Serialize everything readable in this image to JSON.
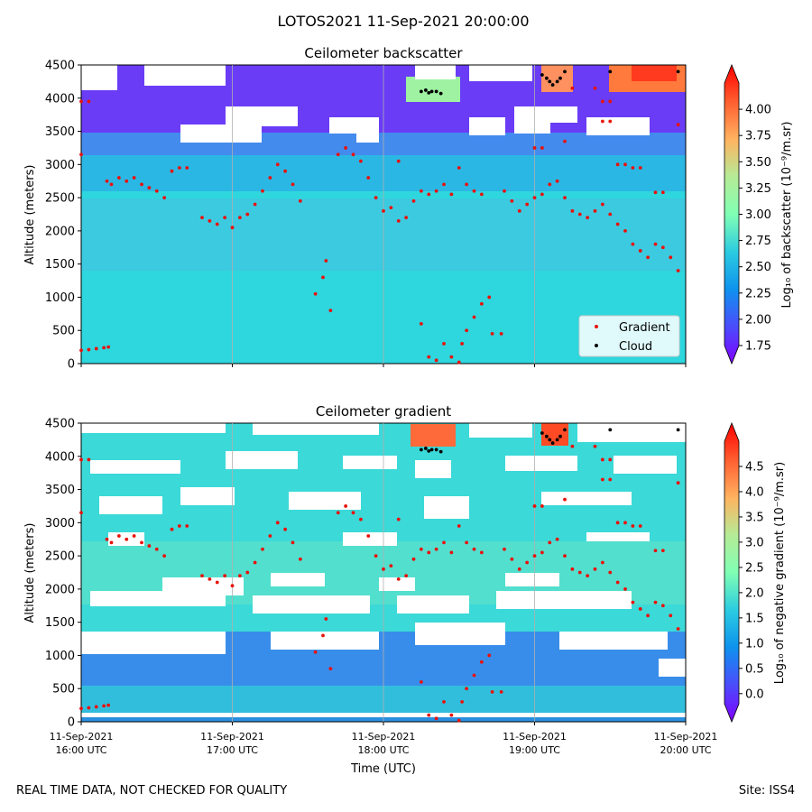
{
  "colors": {
    "gradient_marker": "#e8120a",
    "cloud_marker": "#000000",
    "background": "#ffffff"
  },
  "footer": {
    "left": "REAL TIME DATA, NOT CHECKED FOR QUALITY",
    "right": "Site: ISS4"
  },
  "chart_data": {
    "type": "heatmap",
    "title": "LOTOS2021 11-Sep-2021 20:00:00",
    "xlabel": "Time (UTC)",
    "x_ticks": [
      {
        "hour": 16,
        "line1": "11-Sep-2021",
        "line2": "16:00 UTC"
      },
      {
        "hour": 17,
        "line1": "11-Sep-2021",
        "line2": "17:00 UTC"
      },
      {
        "hour": 18,
        "line1": "11-Sep-2021",
        "line2": "18:00 UTC"
      },
      {
        "hour": 19,
        "line1": "11-Sep-2021",
        "line2": "19:00 UTC"
      },
      {
        "hour": 20,
        "line1": "11-Sep-2021",
        "line2": "20:00 UTC"
      }
    ],
    "xlim": [
      16,
      20
    ],
    "ylim": [
      0,
      4500
    ],
    "y_ticks": [
      0,
      500,
      1000,
      1500,
      2000,
      2500,
      3000,
      3500,
      4000,
      4500
    ],
    "legend": {
      "placement": "lower-right",
      "entries": [
        "Gradient",
        "Cloud"
      ]
    },
    "panels": [
      {
        "title": "Ceilometer backscatter",
        "ylabel": "Altitude (meters)",
        "colorbar_label": "Log₁₀ of backscatter (10⁻⁹/m.sr)",
        "colorbar_range": [
          1.75,
          4.25
        ],
        "colorbar_ticks": [
          "1.75",
          "2.00",
          "2.25",
          "2.50",
          "2.75",
          "3.00",
          "3.25",
          "3.50",
          "3.75",
          "4.00"
        ],
        "colorbar_values": [
          1.75,
          2.0,
          2.25,
          2.5,
          2.75,
          3.0,
          3.25,
          3.5,
          3.75,
          4.0
        ]
      },
      {
        "title": "Ceilometer gradient",
        "ylabel": "Altitude (meters)",
        "colorbar_label": "Log₁₀ of negative gradient (10⁻⁹/m.sr)",
        "colorbar_range": [
          -0.2,
          5.0
        ],
        "colorbar_ticks": [
          "0.0",
          "0.5",
          "1.0",
          "1.5",
          "2.0",
          "2.5",
          "3.0",
          "3.5",
          "4.0",
          "4.5"
        ],
        "colorbar_values": [
          0.0,
          0.5,
          1.0,
          1.5,
          2.0,
          2.5,
          3.0,
          3.5,
          4.0,
          4.5
        ]
      }
    ],
    "gradient_series": [
      [
        16.0,
        200
      ],
      [
        16.05,
        210
      ],
      [
        16.1,
        225
      ],
      [
        16.15,
        240
      ],
      [
        16.18,
        250
      ],
      [
        16.0,
        3950
      ],
      [
        16.05,
        3950
      ],
      [
        16.0,
        3150
      ],
      [
        16.17,
        2750
      ],
      [
        16.2,
        2700
      ],
      [
        16.25,
        2800
      ],
      [
        16.3,
        2750
      ],
      [
        16.35,
        2800
      ],
      [
        16.4,
        2700
      ],
      [
        16.45,
        2650
      ],
      [
        16.5,
        2600
      ],
      [
        16.55,
        2500
      ],
      [
        16.6,
        2900
      ],
      [
        16.65,
        2950
      ],
      [
        16.7,
        2950
      ],
      [
        16.8,
        2200
      ],
      [
        16.85,
        2150
      ],
      [
        16.9,
        2100
      ],
      [
        16.95,
        2200
      ],
      [
        17.0,
        2050
      ],
      [
        17.05,
        2200
      ],
      [
        17.1,
        2250
      ],
      [
        17.15,
        2400
      ],
      [
        17.2,
        2600
      ],
      [
        17.25,
        2800
      ],
      [
        17.3,
        3000
      ],
      [
        17.35,
        2900
      ],
      [
        17.4,
        2700
      ],
      [
        17.45,
        2450
      ],
      [
        17.55,
        1050
      ],
      [
        17.6,
        1300
      ],
      [
        17.62,
        1550
      ],
      [
        17.65,
        800
      ],
      [
        17.7,
        3150
      ],
      [
        17.75,
        3250
      ],
      [
        17.8,
        3150
      ],
      [
        17.85,
        3050
      ],
      [
        17.9,
        2800
      ],
      [
        17.95,
        2500
      ],
      [
        18.0,
        2300
      ],
      [
        18.05,
        2350
      ],
      [
        18.1,
        2150
      ],
      [
        18.15,
        2200
      ],
      [
        18.2,
        2450
      ],
      [
        18.25,
        2600
      ],
      [
        18.3,
        2550
      ],
      [
        18.35,
        2600
      ],
      [
        18.4,
        2700
      ],
      [
        18.45,
        2550
      ],
      [
        18.5,
        2950
      ],
      [
        18.55,
        2700
      ],
      [
        18.6,
        2600
      ],
      [
        18.65,
        2550
      ],
      [
        18.1,
        3050
      ],
      [
        18.25,
        600
      ],
      [
        18.3,
        100
      ],
      [
        18.35,
        50
      ],
      [
        18.4,
        300
      ],
      [
        18.45,
        100
      ],
      [
        18.5,
        20
      ],
      [
        18.52,
        300
      ],
      [
        18.55,
        500
      ],
      [
        18.6,
        700
      ],
      [
        18.65,
        900
      ],
      [
        18.7,
        1000
      ],
      [
        18.72,
        450
      ],
      [
        18.78,
        450
      ],
      [
        18.8,
        2600
      ],
      [
        18.85,
        2450
      ],
      [
        18.9,
        2300
      ],
      [
        18.95,
        2400
      ],
      [
        19.0,
        2500
      ],
      [
        19.05,
        2550
      ],
      [
        19.1,
        2700
      ],
      [
        19.15,
        2750
      ],
      [
        19.2,
        2500
      ],
      [
        19.25,
        2300
      ],
      [
        19.3,
        2250
      ],
      [
        19.35,
        2200
      ],
      [
        19.4,
        2300
      ],
      [
        19.45,
        2400
      ],
      [
        19.5,
        2250
      ],
      [
        19.55,
        2100
      ],
      [
        19.6,
        2000
      ],
      [
        19.65,
        1800
      ],
      [
        19.7,
        1700
      ],
      [
        19.75,
        1600
      ],
      [
        19.8,
        1800
      ],
      [
        19.85,
        1750
      ],
      [
        19.9,
        1600
      ],
      [
        19.95,
        1400
      ],
      [
        19.0,
        3250
      ],
      [
        19.05,
        3250
      ],
      [
        19.2,
        3350
      ],
      [
        19.55,
        3000
      ],
      [
        19.6,
        3000
      ],
      [
        19.65,
        2950
      ],
      [
        19.7,
        2950
      ],
      [
        19.8,
        2580
      ],
      [
        19.85,
        2580
      ],
      [
        19.4,
        4150
      ],
      [
        19.45,
        3950
      ],
      [
        19.5,
        3950
      ],
      [
        19.95,
        3600
      ],
      [
        19.45,
        3650
      ],
      [
        19.5,
        3650
      ],
      [
        19.25,
        4150
      ]
    ],
    "cloud_series": [
      [
        18.25,
        4100
      ],
      [
        18.28,
        4120
      ],
      [
        18.3,
        4080
      ],
      [
        18.32,
        4100
      ],
      [
        18.35,
        4100
      ],
      [
        18.38,
        4070
      ],
      [
        19.05,
        4350
      ],
      [
        19.08,
        4300
      ],
      [
        19.1,
        4250
      ],
      [
        19.12,
        4200
      ],
      [
        19.15,
        4250
      ],
      [
        19.17,
        4300
      ],
      [
        19.2,
        4400
      ],
      [
        19.5,
        4400
      ],
      [
        19.95,
        4400
      ]
    ],
    "gradient_label": "Gradient",
    "cloud_label": "Cloud"
  }
}
